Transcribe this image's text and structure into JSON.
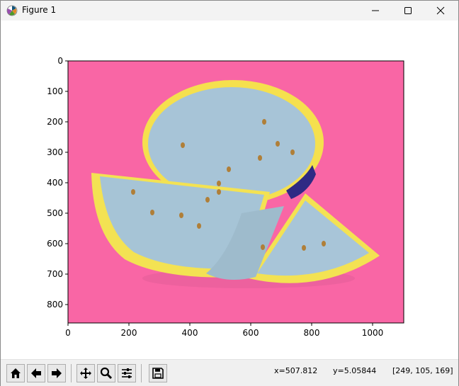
{
  "window": {
    "title": "Figure 1",
    "controls": {
      "minimize": "minimize-icon",
      "maximize": "maximize-icon",
      "close": "close-icon"
    }
  },
  "plot": {
    "x_ticks": [
      "0",
      "200",
      "400",
      "600",
      "800",
      "1000"
    ],
    "y_ticks": [
      "0",
      "100",
      "200",
      "300",
      "400",
      "500",
      "600",
      "700",
      "800"
    ],
    "background_color": "#f966a5",
    "image_description_colors": {
      "flesh": "#a6c4d6",
      "rind": "#f3e253",
      "seed": "#b07f38",
      "shadow": "#2e2a84"
    }
  },
  "toolbar": {
    "buttons": [
      {
        "name": "home",
        "icon": "home-icon"
      },
      {
        "name": "back",
        "icon": "arrow-left-icon"
      },
      {
        "name": "forward",
        "icon": "arrow-right-icon"
      },
      {
        "name": "pan",
        "icon": "move-icon"
      },
      {
        "name": "zoom",
        "icon": "magnifier-icon"
      },
      {
        "name": "configure",
        "icon": "sliders-icon"
      },
      {
        "name": "save",
        "icon": "floppy-icon"
      }
    ]
  },
  "status": {
    "x": "x=507.812",
    "y": "y=5.05844",
    "pixel": "[249, 105, 169]"
  }
}
